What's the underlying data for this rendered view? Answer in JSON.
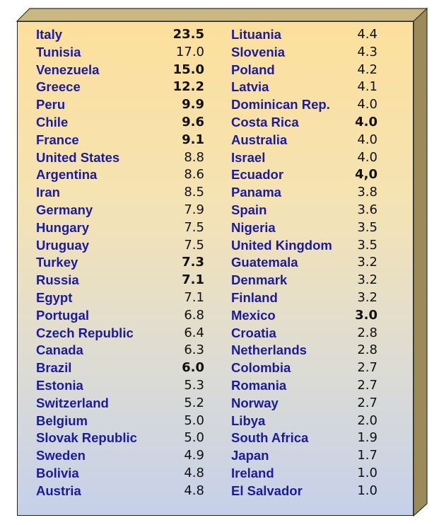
{
  "table": {
    "left_column": [
      {
        "country": "Italy",
        "value": "23.5",
        "bold": true
      },
      {
        "country": "Tunisia",
        "value": "17.0",
        "bold": false
      },
      {
        "country": "Venezuela",
        "value": "15.0",
        "bold": true
      },
      {
        "country": "Greece",
        "value": "12.2",
        "bold": true
      },
      {
        "country": "Peru",
        "value": "9.9",
        "bold": true
      },
      {
        "country": "Chile",
        "value": "9.6",
        "bold": true
      },
      {
        "country": "France",
        "value": "9.1",
        "bold": true
      },
      {
        "country": "United States",
        "value": "8.8",
        "bold": false
      },
      {
        "country": "Argentina",
        "value": "8.6",
        "bold": false
      },
      {
        "country": "Iran",
        "value": "8.5",
        "bold": false
      },
      {
        "country": "Germany",
        "value": "7.9",
        "bold": false
      },
      {
        "country": "Hungary",
        "value": "7.5",
        "bold": false
      },
      {
        "country": "Uruguay",
        "value": "7.5",
        "bold": false
      },
      {
        "country": "Turkey",
        "value": "7.3",
        "bold": true
      },
      {
        "country": "Russia",
        "value": "7.1",
        "bold": true
      },
      {
        "country": "Egypt",
        "value": "7.1",
        "bold": false
      },
      {
        "country": "Portugal",
        "value": "6.8",
        "bold": false
      },
      {
        "country": "Czech Republic",
        "value": "6.4",
        "bold": false
      },
      {
        "country": "Canada",
        "value": "6.3",
        "bold": false
      },
      {
        "country": "Brazil",
        "value": "6.0",
        "bold": true
      },
      {
        "country": "Estonia",
        "value": "5.3",
        "bold": false
      },
      {
        "country": "Switzerland",
        "value": "5.2",
        "bold": false
      },
      {
        "country": "Belgium",
        "value": "5.0",
        "bold": false
      },
      {
        "country": "Slovak Republic",
        "value": "5.0",
        "bold": false
      },
      {
        "country": "Sweden",
        "value": "4.9",
        "bold": false
      },
      {
        "country": "Bolivia",
        "value": "4.8",
        "bold": false
      },
      {
        "country": "Austria",
        "value": "4.8",
        "bold": false
      }
    ],
    "right_column": [
      {
        "country": "Lituania",
        "value": "4.4",
        "bold": false
      },
      {
        "country": "Slovenia",
        "value": "4.3",
        "bold": false
      },
      {
        "country": "Poland",
        "value": "4.2",
        "bold": false
      },
      {
        "country": "Latvia",
        "value": "4.1",
        "bold": false
      },
      {
        "country": "Dominican Rep.",
        "value": "4.0",
        "bold": false
      },
      {
        "country": "Costa Rica",
        "value": "4.0",
        "bold": true
      },
      {
        "country": "Australia",
        "value": "4.0",
        "bold": false
      },
      {
        "country": "Israel",
        "value": "4.0",
        "bold": false
      },
      {
        "country": "Ecuador",
        "value": "4,0",
        "bold": true
      },
      {
        "country": "Panama",
        "value": "3.8",
        "bold": false
      },
      {
        "country": "Spain",
        "value": "3.6",
        "bold": false
      },
      {
        "country": "Nigeria",
        "value": "3.5",
        "bold": false
      },
      {
        "country": "United Kingdom",
        "value": "3.5",
        "bold": false
      },
      {
        "country": "Guatemala",
        "value": "3.2",
        "bold": false
      },
      {
        "country": "Denmark",
        "value": "3.2",
        "bold": false
      },
      {
        "country": "Finland",
        "value": "3.2",
        "bold": false
      },
      {
        "country": "Mexico",
        "value": "3.0",
        "bold": true
      },
      {
        "country": "Croatia",
        "value": "2.8",
        "bold": false
      },
      {
        "country": "Netherlands",
        "value": "2.8",
        "bold": false
      },
      {
        "country": "Colombia",
        "value": "2.7",
        "bold": false
      },
      {
        "country": "Romania",
        "value": "2.7",
        "bold": false
      },
      {
        "country": "Norway",
        "value": "2.7",
        "bold": false
      },
      {
        "country": "Libya",
        "value": "2.0",
        "bold": false
      },
      {
        "country": "South Africa",
        "value": "1.9",
        "bold": false
      },
      {
        "country": "Japan",
        "value": "1.7",
        "bold": false
      },
      {
        "country": "Ireland",
        "value": "1.0",
        "bold": false
      },
      {
        "country": "El Salvador",
        "value": "1.0",
        "bold": false
      }
    ]
  },
  "colors": {
    "country_text": "#1c1c9b",
    "value_text": "#111111",
    "box_top": "#c8b880",
    "box_side": "#9a8a58"
  }
}
